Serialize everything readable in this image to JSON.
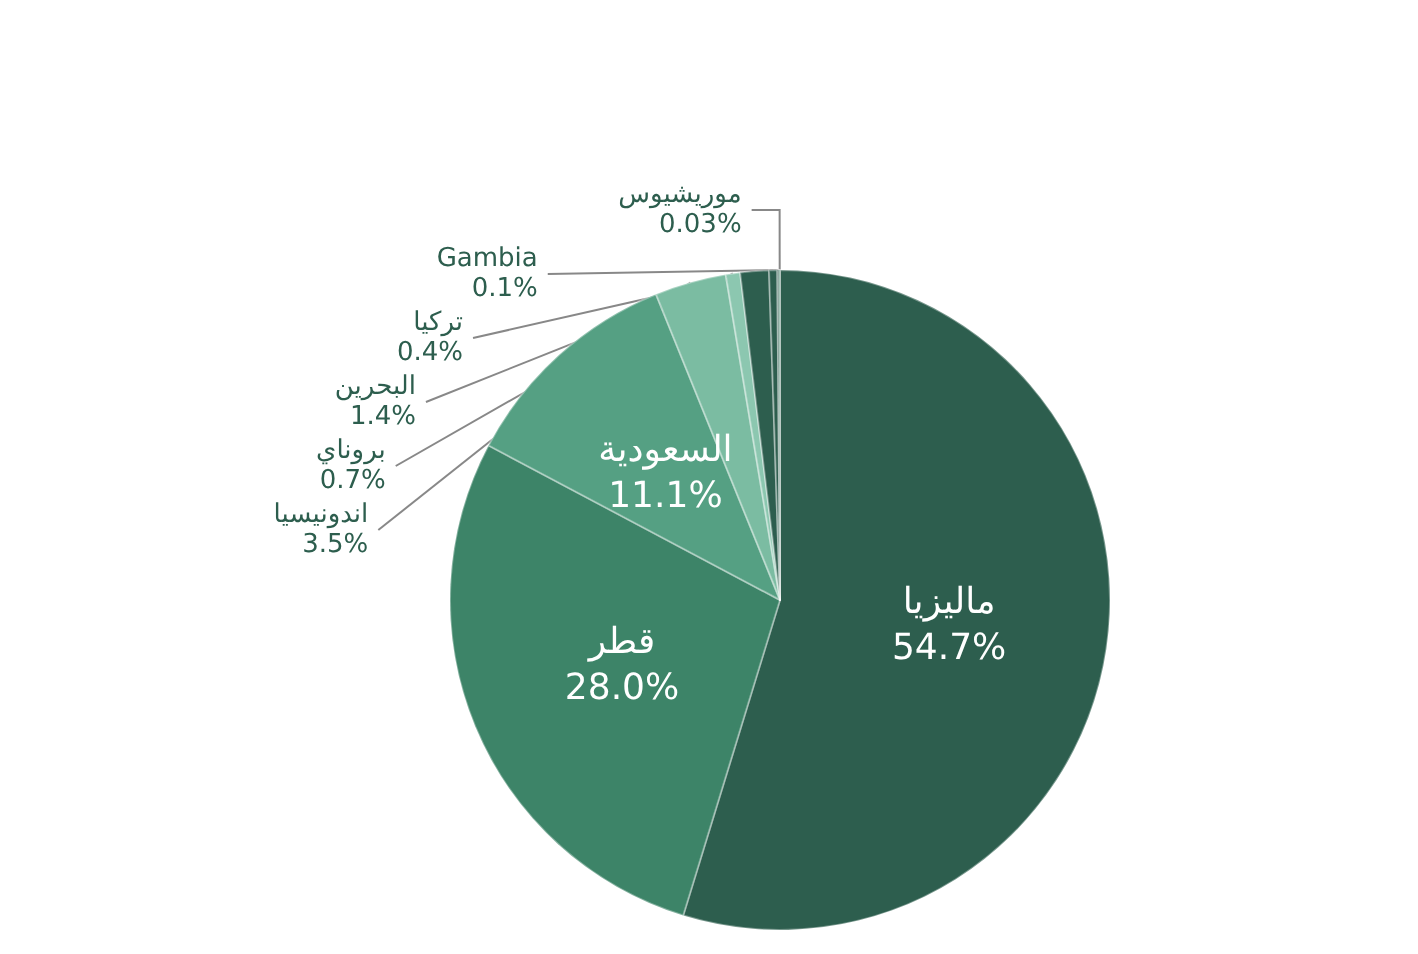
{
  "chart_data": {
    "type": "pie",
    "categories": [
      "ماليزيا",
      "قطر",
      "السعودية",
      "اندونيسيا",
      "بروناي",
      "البحرين",
      "تركيا",
      "Gambia",
      "موريشيوس"
    ],
    "values": [
      54.7,
      28.0,
      11.1,
      3.5,
      0.7,
      1.4,
      0.4,
      0.1,
      0.03
    ],
    "value_labels": [
      "54.7%",
      "28.0%",
      "11.1%",
      "3.5%",
      "0.7%",
      "1.4%",
      "0.4%",
      "0.1%",
      "0.03%"
    ],
    "colors": [
      "#2d5e4e",
      "#3d8468",
      "#55a083",
      "#7bbca2",
      "#8cc7b0",
      "#2d5e4e",
      "#2d5e4e",
      "#2d5e4e",
      "#3d8468"
    ]
  }
}
